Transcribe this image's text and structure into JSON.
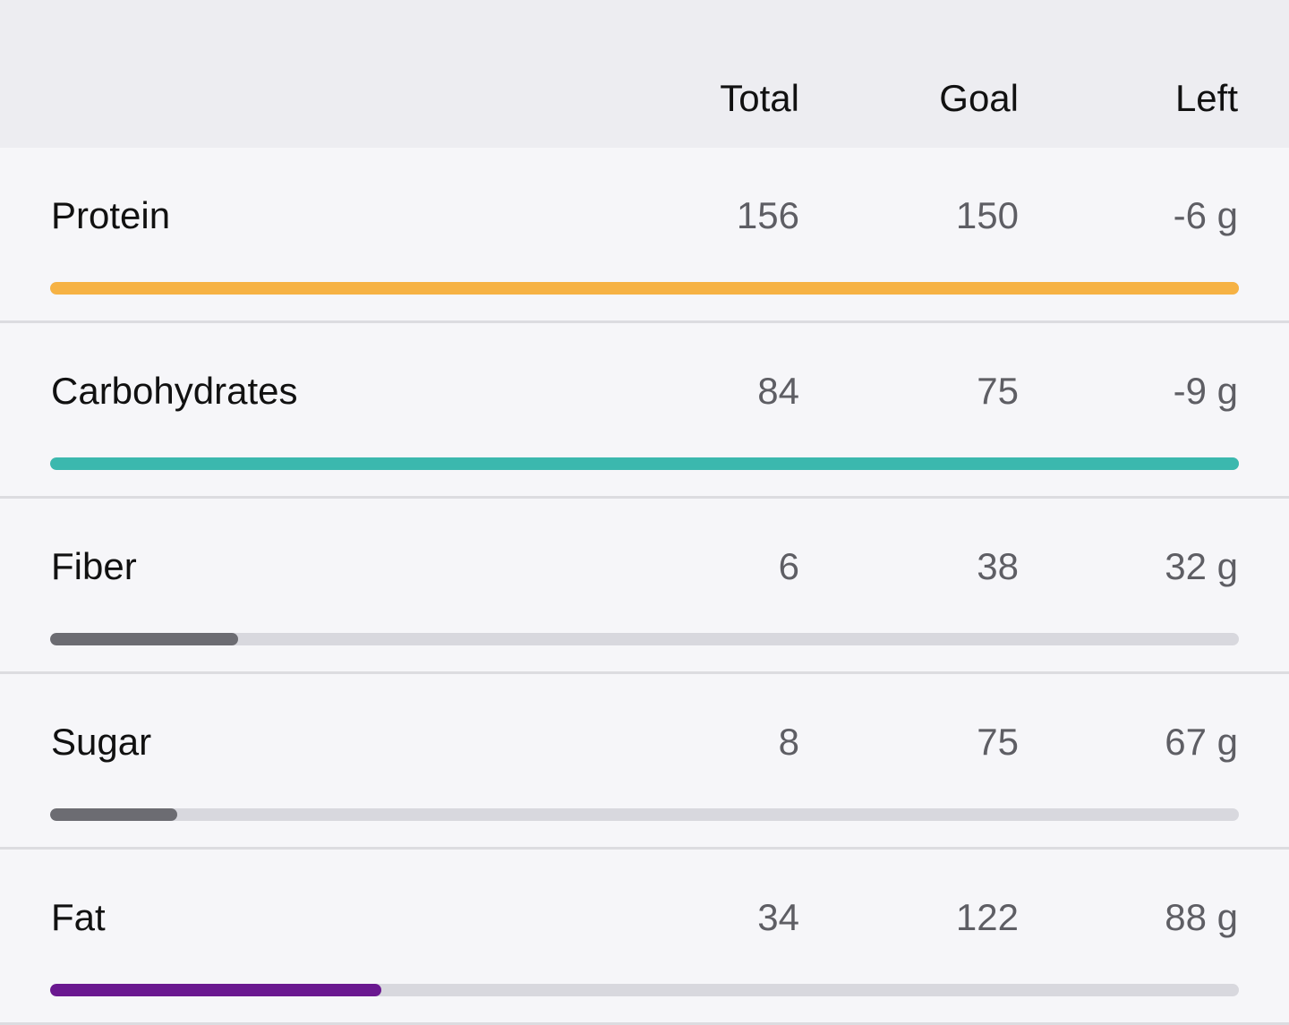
{
  "header": {
    "columns": [
      "Total",
      "Goal",
      "Left"
    ]
  },
  "rows": [
    {
      "name": "Protein",
      "total": 156,
      "goal": 150,
      "left": "-6 g",
      "color": "#f6b244"
    },
    {
      "name": "Carbohydrates",
      "total": 84,
      "goal": 75,
      "left": "-9 g",
      "color": "#3bb8ae"
    },
    {
      "name": "Fiber",
      "total": 6,
      "goal": 38,
      "left": "32 g",
      "color": "#6c6c72"
    },
    {
      "name": "Sugar",
      "total": 8,
      "goal": 75,
      "left": "67 g",
      "color": "#6c6c72"
    },
    {
      "name": "Fat",
      "total": 34,
      "goal": 122,
      "left": "88 g",
      "color": "#6a1890"
    }
  ]
}
